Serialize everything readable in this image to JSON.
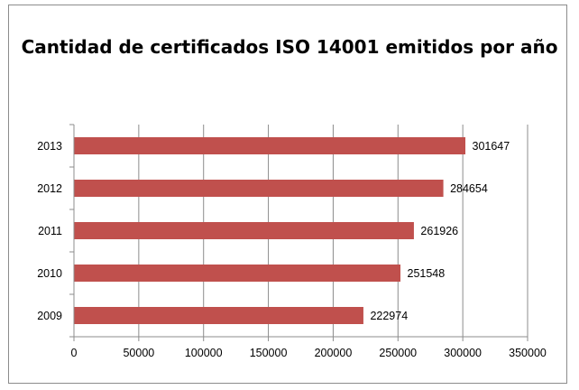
{
  "chart_data": {
    "type": "bar",
    "orientation": "horizontal",
    "title": "Cantidad de certificados ISO 14001 emitidos por año",
    "categories": [
      "2009",
      "2010",
      "2011",
      "2012",
      "2013"
    ],
    "values": [
      222974,
      251548,
      261926,
      284654,
      301647
    ],
    "data_labels": [
      "222974",
      "251548",
      "261926",
      "284654",
      "301647"
    ],
    "xlim": [
      0,
      350000
    ],
    "x_ticks": [
      0,
      50000,
      100000,
      150000,
      200000,
      250000,
      300000,
      350000
    ],
    "x_tick_labels": [
      "0",
      "50000",
      "100000",
      "150000",
      "200000",
      "250000",
      "300000",
      "350000"
    ],
    "grid": "vertical",
    "legend": "none",
    "bar_color": "#c0504d"
  }
}
